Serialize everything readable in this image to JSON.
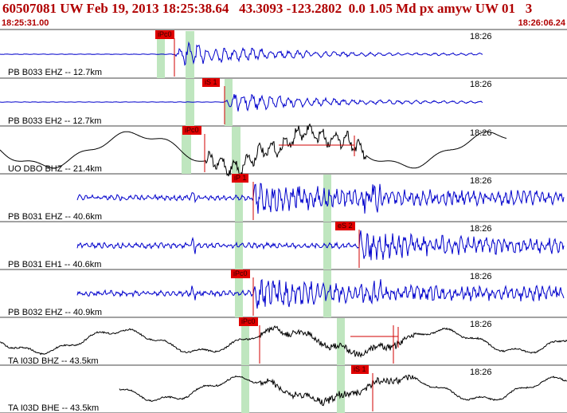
{
  "header": {
    "title": "60507081 UW Feb 19, 2013 18:25:38.64   43.3093 -123.2802  0.0 1.05 Md px amyw UW 01   3",
    "time_start": "18:25:31.00",
    "time_end": "18:26:06.24"
  },
  "colors": {
    "header_text": "#b00000",
    "pick_flag": "#e00000",
    "trace_blue": "#0000cc",
    "trace_black": "#000000",
    "window_green": "#bfe6bf",
    "divider": "#444444",
    "red_line": "#d00000"
  },
  "traces": [
    {
      "label": "PB B033 EHZ -- 12.7km",
      "clock": "18:26",
      "color": "blue",
      "pick": "iPc0",
      "style": "burst1"
    },
    {
      "label": "PB B033 EH2 -- 12.7km",
      "clock": "18:26",
      "color": "blue",
      "pick": "iS 1",
      "style": "burst1b"
    },
    {
      "label": "UO DBO BHZ -- 21.4km",
      "clock": "18:26",
      "color": "black",
      "pick": "iPc0",
      "style": "slow1"
    },
    {
      "label": "PB B031 EHZ -- 40.6km",
      "clock": "18:26",
      "color": "blue",
      "pick": "iP 1",
      "style": "noise"
    },
    {
      "label": "PB B031 EH1 -- 40.6km",
      "clock": "18:26",
      "color": "blue",
      "pick": "eS 2",
      "style": "noise2"
    },
    {
      "label": "PB B032 EHZ -- 40.9km",
      "clock": "18:26",
      "color": "blue",
      "pick": "iPc0",
      "style": "noise3"
    },
    {
      "label": "TA I03D BHZ -- 43.5km",
      "clock": "18:26",
      "color": "black",
      "pick": "iPc0",
      "style": "slow2"
    },
    {
      "label": "TA I03D BHE -- 43.5km",
      "clock": "18:26",
      "color": "black",
      "pick": "iS 1",
      "style": "slow3"
    }
  ]
}
